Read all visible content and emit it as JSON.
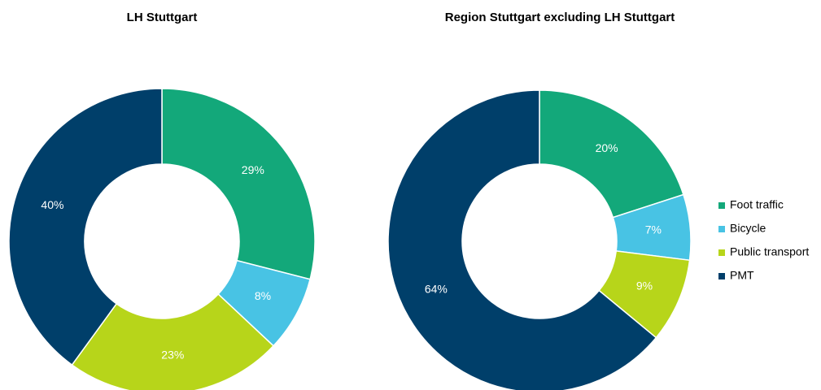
{
  "chart_data": [
    {
      "type": "donut",
      "title": "LH Stuttgart",
      "values": [
        29,
        8,
        23,
        40
      ],
      "value_labels": [
        "29%",
        "8%",
        "23%",
        "40%"
      ]
    },
    {
      "type": "donut",
      "title": "Region Stuttgart excluding LH Stuttgart",
      "values": [
        20,
        7,
        9,
        64
      ],
      "value_labels": [
        "20%",
        "7%",
        "9%",
        "64%"
      ]
    }
  ],
  "legend": {
    "labels": [
      "Foot traffic",
      "Bicycle",
      "Public transport",
      "PMT"
    ],
    "colors": [
      "#13a87a",
      "#48c3e4",
      "#b7d51a",
      "#003f6a"
    ]
  }
}
